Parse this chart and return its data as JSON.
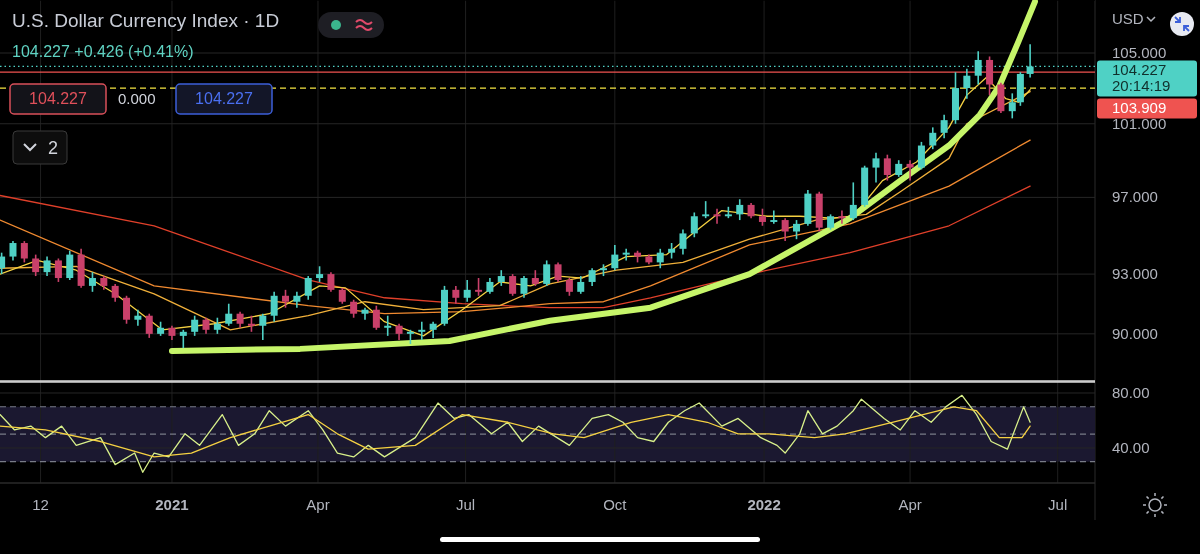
{
  "chart_data": [
    {
      "type": "candlestick",
      "title": "U.S. Dollar Currency Index · 1D",
      "annotations": [
        "104.227 +0.426 (+0.41%)",
        "104.227",
        "0.000",
        "104.227",
        "2",
        "USD",
        "20:14:19"
      ],
      "xlim": [
        "2020-09-17",
        "2022-07-24"
      ],
      "xticks": [
        {
          "value": "2020-10-12",
          "label": null
        },
        {
          "value": "2021-01-01",
          "label": null
        },
        {
          "value": "2021-04-01",
          "label": null
        },
        {
          "value": "2021-07-01",
          "label": null
        },
        {
          "value": "2021-10-01",
          "label": null
        },
        {
          "value": "2022-01-01",
          "label": null
        },
        {
          "value": "2022-04-01",
          "label": null
        },
        {
          "value": "2022-07-01",
          "label": null
        }
      ],
      "ylim": [
        87.7,
        108.1
      ],
      "yticks": [
        {
          "value": 90,
          "label": "90.000"
        },
        {
          "value": 93,
          "label": "93.000"
        },
        {
          "value": 97,
          "label": "97.000"
        },
        {
          "value": 101,
          "label": "101.000"
        },
        {
          "value": 105,
          "label": "105.000"
        }
      ],
      "log": "y",
      "grid": true,
      "tick_labels": "y",
      "ref_lines": [
        {
          "axis": "y",
          "value": 104.227,
          "label": "104.227",
          "color": "#4fd1c5",
          "line_style": "dotted"
        },
        {
          "axis": "y",
          "value": 103.909,
          "label": "103.909",
          "color": "#ef5350",
          "line_style": "solid"
        },
        {
          "axis": "y",
          "value": 103.0,
          "color": "#f5e642",
          "line_style": "dashed"
        }
      ],
      "series": [
        {
          "type": "candlestick",
          "x": [
            "2020-09-18",
            "2020-09-25",
            "2020-10-02",
            "2020-10-09",
            "2020-10-16",
            "2020-10-23",
            "2020-10-30",
            "2020-11-06",
            "2020-11-13",
            "2020-11-20",
            "2020-11-27",
            "2020-12-04",
            "2020-12-11",
            "2020-12-18",
            "2020-12-25",
            "2021-01-01",
            "2021-01-08",
            "2021-01-15",
            "2021-01-22",
            "2021-01-29",
            "2021-02-05",
            "2021-02-12",
            "2021-02-19",
            "2021-02-26",
            "2021-03-05",
            "2021-03-12",
            "2021-03-19",
            "2021-03-26",
            "2021-04-02",
            "2021-04-09",
            "2021-04-16",
            "2021-04-23",
            "2021-04-30",
            "2021-05-07",
            "2021-05-14",
            "2021-05-21",
            "2021-05-28",
            "2021-06-04",
            "2021-06-11",
            "2021-06-18",
            "2021-06-25",
            "2021-07-02",
            "2021-07-09",
            "2021-07-16",
            "2021-07-23",
            "2021-07-30",
            "2021-08-06",
            "2021-08-13",
            "2021-08-20",
            "2021-08-27",
            "2021-09-03",
            "2021-09-10",
            "2021-09-17",
            "2021-09-24",
            "2021-10-01",
            "2021-10-08",
            "2021-10-15",
            "2021-10-22",
            "2021-10-29",
            "2021-11-05",
            "2021-11-12",
            "2021-11-19",
            "2021-11-26",
            "2021-12-03",
            "2021-12-10",
            "2021-12-17",
            "2021-12-24",
            "2021-12-31",
            "2022-01-07",
            "2022-01-14",
            "2022-01-21",
            "2022-01-28",
            "2022-02-04",
            "2022-02-11",
            "2022-02-18",
            "2022-02-25",
            "2022-03-04",
            "2022-03-11",
            "2022-03-18",
            "2022-03-25",
            "2022-04-01",
            "2022-04-08",
            "2022-04-15",
            "2022-04-22",
            "2022-04-29",
            "2022-05-06",
            "2022-05-13",
            "2022-05-20",
            "2022-05-27",
            "2022-06-03",
            "2022-06-08",
            "2022-06-14"
          ],
          "ohlc": [
            [
              93.3,
              94.1,
              93.0,
              93.9
            ],
            [
              93.9,
              94.7,
              93.7,
              94.6
            ],
            [
              94.6,
              94.7,
              93.6,
              93.8
            ],
            [
              93.8,
              94.0,
              92.9,
              93.1
            ],
            [
              93.1,
              93.9,
              92.9,
              93.7
            ],
            [
              93.7,
              93.8,
              92.6,
              92.8
            ],
            [
              92.8,
              94.2,
              92.7,
              94.0
            ],
            [
              94.0,
              94.3,
              92.3,
              92.4
            ],
            [
              92.4,
              93.1,
              92.1,
              92.8
            ],
            [
              92.8,
              92.9,
              92.2,
              92.4
            ],
            [
              92.4,
              92.5,
              91.6,
              91.8
            ],
            [
              91.8,
              91.9,
              90.5,
              90.7
            ],
            [
              90.7,
              91.2,
              90.4,
              90.9
            ],
            [
              90.9,
              91.0,
              89.8,
              90.0
            ],
            [
              90.0,
              90.6,
              89.9,
              90.3
            ],
            [
              90.3,
              90.4,
              89.7,
              89.9
            ],
            [
              89.9,
              90.2,
              89.3,
              90.1
            ],
            [
              90.1,
              90.9,
              89.9,
              90.7
            ],
            [
              90.7,
              90.8,
              90.0,
              90.2
            ],
            [
              90.2,
              90.8,
              90.0,
              90.5
            ],
            [
              90.5,
              91.5,
              90.4,
              91.0
            ],
            [
              91.0,
              91.1,
              90.3,
              90.5
            ],
            [
              90.5,
              90.9,
              90.1,
              90.4
            ],
            [
              90.4,
              91.0,
              89.7,
              90.9
            ],
            [
              90.9,
              92.1,
              90.6,
              91.9
            ],
            [
              91.9,
              92.2,
              91.3,
              91.6
            ],
            [
              91.6,
              92.1,
              91.3,
              91.9
            ],
            [
              91.9,
              92.9,
              91.7,
              92.8
            ],
            [
              92.8,
              93.4,
              92.6,
              93.0
            ],
            [
              93.0,
              93.1,
              92.1,
              92.2
            ],
            [
              92.2,
              92.3,
              91.5,
              91.6
            ],
            [
              91.6,
              91.7,
              90.8,
              91.0
            ],
            [
              91.0,
              91.3,
              90.7,
              91.2
            ],
            [
              91.2,
              91.4,
              90.2,
              90.3
            ],
            [
              90.3,
              90.9,
              89.9,
              90.4
            ],
            [
              90.4,
              90.5,
              89.7,
              90.0
            ],
            [
              90.0,
              90.2,
              89.5,
              90.1
            ],
            [
              90.1,
              90.6,
              89.7,
              90.2
            ],
            [
              90.2,
              90.6,
              89.8,
              90.5
            ],
            [
              90.5,
              92.4,
              90.4,
              92.2
            ],
            [
              92.2,
              92.4,
              91.5,
              91.8
            ],
            [
              91.8,
              92.7,
              91.6,
              92.2
            ],
            [
              92.2,
              92.8,
              91.9,
              92.1
            ],
            [
              92.1,
              92.8,
              92.0,
              92.6
            ],
            [
              92.6,
              93.2,
              92.4,
              92.9
            ],
            [
              92.9,
              93.0,
              91.9,
              92.0
            ],
            [
              92.0,
              92.9,
              91.8,
              92.8
            ],
            [
              92.8,
              93.2,
              92.4,
              92.5
            ],
            [
              92.5,
              93.7,
              92.4,
              93.5
            ],
            [
              93.5,
              93.6,
              92.6,
              92.7
            ],
            [
              92.7,
              92.8,
              91.9,
              92.1
            ],
            [
              92.1,
              92.9,
              92.0,
              92.6
            ],
            [
              92.6,
              93.3,
              92.4,
              93.2
            ],
            [
              93.2,
              93.5,
              92.9,
              93.3
            ],
            [
              93.3,
              94.5,
              93.2,
              94.0
            ],
            [
              94.0,
              94.3,
              93.7,
              94.1
            ],
            [
              94.1,
              94.2,
              93.6,
              93.9
            ],
            [
              93.9,
              94.0,
              93.5,
              93.6
            ],
            [
              93.6,
              94.3,
              93.3,
              94.1
            ],
            [
              94.1,
              94.6,
              93.8,
              94.3
            ],
            [
              94.3,
              95.3,
              94.0,
              95.1
            ],
            [
              95.1,
              96.2,
              94.9,
              96.0
            ],
            [
              96.0,
              96.8,
              95.9,
              96.1
            ],
            [
              96.1,
              96.4,
              95.6,
              96.0
            ],
            [
              96.0,
              96.5,
              95.9,
              96.1
            ],
            [
              96.1,
              96.9,
              95.8,
              96.6
            ],
            [
              96.6,
              96.7,
              95.9,
              96.0
            ],
            [
              96.0,
              96.4,
              95.5,
              95.7
            ],
            [
              95.7,
              96.3,
              95.6,
              95.8
            ],
            [
              95.8,
              95.9,
              94.7,
              95.2
            ],
            [
              95.2,
              95.8,
              94.8,
              95.6
            ],
            [
              95.6,
              97.4,
              95.5,
              97.2
            ],
            [
              97.2,
              97.3,
              95.2,
              95.4
            ],
            [
              95.4,
              96.1,
              95.3,
              96.0
            ],
            [
              96.0,
              96.3,
              95.6,
              95.9
            ],
            [
              95.9,
              97.8,
              95.8,
              96.6
            ],
            [
              96.6,
              98.7,
              96.5,
              98.6
            ],
            [
              98.6,
              99.4,
              97.8,
              99.1
            ],
            [
              99.1,
              99.3,
              97.9,
              98.2
            ],
            [
              98.2,
              99.0,
              98.1,
              98.8
            ],
            [
              98.8,
              99.0,
              97.9,
              98.6
            ],
            [
              98.6,
              100.0,
              98.5,
              99.8
            ],
            [
              99.8,
              100.8,
              99.6,
              100.5
            ],
            [
              100.5,
              101.5,
              100.2,
              101.2
            ],
            [
              101.2,
              103.9,
              101.0,
              103.0
            ],
            [
              103.0,
              104.1,
              102.4,
              103.7
            ],
            [
              103.7,
              105.1,
              103.2,
              104.6
            ],
            [
              104.6,
              104.8,
              102.6,
              103.2
            ],
            [
              103.2,
              103.3,
              101.6,
              101.7
            ],
            [
              101.7,
              102.7,
              101.3,
              102.2
            ],
            [
              102.2,
              103.9,
              102.0,
              103.8
            ],
            [
              103.8,
              105.5,
              103.6,
              104.227
            ]
          ],
          "colors": [
            "#4fd1c5",
            "#4fd1c5",
            "#c9406a",
            "#c9406a",
            "#4fd1c5",
            "#c9406a",
            "#4fd1c5",
            "#c9406a",
            "#4fd1c5",
            "#c9406a",
            "#c9406a",
            "#c9406a",
            "#4fd1c5",
            "#c9406a",
            "#4fd1c5",
            "#c9406a",
            "#4fd1c5",
            "#4fd1c5",
            "#c9406a",
            "#4fd1c5",
            "#4fd1c5",
            "#c9406a",
            "#c9406a",
            "#4fd1c5",
            "#4fd1c5",
            "#c9406a",
            "#4fd1c5",
            "#4fd1c5",
            "#4fd1c5",
            "#c9406a",
            "#c9406a",
            "#c9406a",
            "#4fd1c5",
            "#c9406a",
            "#4fd1c5",
            "#c9406a",
            "#4fd1c5",
            "#4fd1c5",
            "#4fd1c5",
            "#4fd1c5",
            "#c9406a",
            "#4fd1c5",
            "#c9406a",
            "#4fd1c5",
            "#4fd1c5",
            "#c9406a",
            "#4fd1c5",
            "#c9406a",
            "#4fd1c5",
            "#c9406a",
            "#c9406a",
            "#4fd1c5",
            "#4fd1c5",
            "#4fd1c5",
            "#4fd1c5",
            "#4fd1c5",
            "#c9406a",
            "#c9406a",
            "#4fd1c5",
            "#4fd1c5",
            "#4fd1c5",
            "#4fd1c5",
            "#4fd1c5",
            "#c9406a",
            "#4fd1c5",
            "#4fd1c5",
            "#c9406a",
            "#c9406a",
            "#4fd1c5",
            "#c9406a",
            "#4fd1c5",
            "#4fd1c5",
            "#c9406a",
            "#4fd1c5",
            "#c9406a",
            "#4fd1c5",
            "#4fd1c5",
            "#4fd1c5",
            "#c9406a",
            "#4fd1c5",
            "#c9406a",
            "#4fd1c5",
            "#4fd1c5",
            "#4fd1c5",
            "#4fd1c5",
            "#4fd1c5",
            "#4fd1c5",
            "#c9406a",
            "#c9406a",
            "#4fd1c5",
            "#4fd1c5",
            "#4fd1c5"
          ]
        },
        {
          "type": "line",
          "color": "#e0402a",
          "x": [
            "2020-09-17",
            "2020-12-21",
            "2021-03-26",
            "2021-05-12",
            "2021-06-29",
            "2021-08-22",
            "2021-09-24",
            "2021-10-23",
            "2021-12-23",
            "2022-02-23",
            "2022-03-26",
            "2022-04-25",
            "2022-06-14"
          ],
          "values": [
            97.1,
            95.5,
            92.7,
            91.8,
            91.5,
            91.3,
            91.3,
            91.8,
            93.0,
            94.1,
            94.8,
            95.5,
            97.6
          ]
        },
        {
          "type": "line",
          "color": "#f08a30",
          "x": [
            "2020-09-17",
            "2020-12-21",
            "2021-03-26",
            "2021-05-12",
            "2021-06-29",
            "2021-08-22",
            "2021-09-24",
            "2021-10-23",
            "2021-12-23",
            "2022-02-23",
            "2022-04-25",
            "2022-06-14"
          ],
          "values": [
            95.8,
            92.4,
            91.4,
            91.0,
            91.1,
            91.5,
            91.6,
            92.4,
            94.5,
            95.6,
            97.6,
            100.1
          ]
        },
        {
          "type": "line",
          "color": "#f0b03a",
          "x": [
            "2020-09-17",
            "2020-11-03",
            "2020-12-21",
            "2021-02-06",
            "2021-03-26",
            "2021-04-30",
            "2021-06-05",
            "2021-07-22",
            "2021-08-22",
            "2021-10-02",
            "2021-11-12",
            "2021-12-23",
            "2022-02-02",
            "2022-03-05",
            "2022-03-26",
            "2022-04-25",
            "2022-05-06",
            "2022-06-14"
          ],
          "values": [
            93.3,
            93.4,
            92.0,
            90.2,
            90.9,
            91.6,
            91.2,
            91.4,
            92.5,
            93.2,
            93.6,
            94.8,
            95.8,
            96.1,
            97.3,
            99.1,
            101.0,
            102.8
          ]
        },
        {
          "type": "line",
          "color": "#f5d142",
          "x": [
            "2020-09-17",
            "2020-10-10",
            "2020-11-03",
            "2020-11-27",
            "2020-12-26",
            "2021-01-27",
            "2021-03-02",
            "2021-04-02",
            "2021-04-18",
            "2021-05-12",
            "2021-06-05",
            "2021-06-29",
            "2021-07-22",
            "2021-08-10",
            "2021-08-27",
            "2021-09-11",
            "2021-10-08",
            "2021-11-02",
            "2021-11-18",
            "2021-12-06",
            "2022-01-03",
            "2022-01-23",
            "2022-02-12",
            "2022-02-25",
            "2022-03-15",
            "2022-04-05",
            "2022-04-25",
            "2022-05-06",
            "2022-05-18",
            "2022-05-30",
            "2022-06-07",
            "2022-06-14"
          ],
          "values": [
            93.0,
            93.7,
            93.2,
            92.0,
            90.2,
            90.5,
            91.0,
            92.4,
            92.3,
            90.6,
            89.9,
            91.2,
            92.6,
            92.4,
            92.9,
            92.8,
            93.9,
            94.0,
            95.1,
            96.3,
            96.0,
            96.0,
            95.9,
            96.0,
            97.9,
            98.9,
            100.8,
            102.6,
            103.6,
            102.4,
            102.2,
            102.9
          ]
        },
        {
          "type": "line",
          "color": "#c6f56a",
          "x": [
            "2021-01-01",
            "2021-03-21",
            "2021-06-21",
            "2021-08-22",
            "2021-10-23",
            "2021-12-23",
            "2022-02-23",
            "2022-03-26",
            "2022-04-25",
            "2022-05-14",
            "2022-05-26",
            "2022-06-07",
            "2022-06-17"
          ],
          "values": [
            89.16,
            89.26,
            89.65,
            90.65,
            91.3,
            93.0,
            95.9,
            97.9,
            99.8,
            101.5,
            103.1,
            105.7,
            108.0
          ]
        }
      ]
    },
    {
      "type": "line",
      "xlim": [
        "2020-09-17",
        "2022-07-24"
      ],
      "xticks": [
        {
          "value": "2020-10-12",
          "label": "12"
        },
        {
          "value": "2021-01-01",
          "label": "2021"
        },
        {
          "value": "2021-04-01",
          "label": "Apr"
        },
        {
          "value": "2021-07-01",
          "label": "Jul"
        },
        {
          "value": "2021-10-01",
          "label": "Oct"
        },
        {
          "value": "2022-01-01",
          "label": "2022"
        },
        {
          "value": "2022-04-01",
          "label": "Apr"
        },
        {
          "value": "2022-07-01",
          "label": "Jul"
        }
      ],
      "ylim": [
        14.5,
        88.0
      ],
      "yticks": [
        {
          "value": 40,
          "label": "40.00"
        },
        {
          "value": 80,
          "label": "80.00"
        }
      ],
      "grid": true,
      "ref_lines": [
        {
          "axis": "y",
          "value": 70,
          "color": "#787b86",
          "line_style": "dashed"
        },
        {
          "axis": "y",
          "value": 50,
          "color": "#787b86",
          "line_style": "dashed"
        },
        {
          "axis": "y",
          "value": 30,
          "color": "#787b86",
          "line_style": "dashed"
        }
      ],
      "bands": [
        {
          "axis": "y",
          "from": 30,
          "to": 70,
          "color": "#1b1830"
        }
      ],
      "series": [
        {
          "type": "line",
          "color": "#d8f08a",
          "x": [
            "2020-09-17",
            "2020-09-26",
            "2020-10-06",
            "2020-10-15",
            "2020-10-25",
            "2020-11-03",
            "2020-11-18",
            "2020-11-27",
            "2020-12-09",
            "2020-12-14",
            "2020-12-21",
            "2020-12-30",
            "2021-01-09",
            "2021-01-18",
            "2021-02-01",
            "2021-02-11",
            "2021-02-21",
            "2021-03-02",
            "2021-03-12",
            "2021-03-26",
            "2021-04-04",
            "2021-04-13",
            "2021-04-23",
            "2021-05-02",
            "2021-05-12",
            "2021-05-31",
            "2021-06-14",
            "2021-06-24",
            "2021-07-03",
            "2021-07-17",
            "2021-07-27",
            "2021-08-05",
            "2021-08-15",
            "2021-09-03",
            "2021-09-17",
            "2021-09-27",
            "2021-10-06",
            "2021-10-15",
            "2021-10-25",
            "2021-11-03",
            "2021-11-13",
            "2021-11-22",
            "2021-12-06",
            "2021-12-16",
            "2021-12-30",
            "2022-01-09",
            "2022-01-14",
            "2022-01-23",
            "2022-01-28",
            "2022-02-06",
            "2022-02-15",
            "2022-02-25",
            "2022-03-02",
            "2022-03-16",
            "2022-03-26",
            "2022-04-04",
            "2022-04-14",
            "2022-04-23",
            "2022-05-03",
            "2022-05-12",
            "2022-05-21",
            "2022-05-31",
            "2022-06-10",
            "2022-06-14"
          ],
          "values": [
            64.3,
            53.1,
            55.9,
            47.5,
            55.9,
            41.9,
            47.5,
            27.9,
            36.3,
            22.3,
            36.3,
            33.5,
            50.3,
            41.9,
            64.3,
            41.9,
            50.3,
            67.1,
            55.9,
            67.1,
            53.1,
            36.3,
            33.5,
            41.9,
            33.5,
            47.5,
            72.7,
            61.5,
            64.3,
            50.3,
            58.7,
            44.7,
            55.9,
            41.9,
            61.5,
            64.3,
            58.7,
            47.5,
            44.7,
            58.7,
            67.1,
            72.7,
            55.9,
            61.5,
            47.5,
            41.9,
            36.3,
            50.3,
            67.1,
            50.3,
            55.9,
            67.1,
            75.5,
            61.5,
            53.1,
            67.1,
            58.7,
            69.9,
            78.3,
            64.3,
            44.7,
            39.1,
            69.9,
            58.7
          ]
        },
        {
          "type": "line",
          "color": "#f5d142",
          "x": [
            "2020-09-17",
            "2020-10-15",
            "2020-11-18",
            "2020-12-21",
            "2021-01-13",
            "2021-02-06",
            "2021-03-02",
            "2021-03-26",
            "2021-04-13",
            "2021-05-02",
            "2021-05-31",
            "2021-06-29",
            "2021-07-27",
            "2021-08-24",
            "2021-09-12",
            "2021-10-11",
            "2021-11-03",
            "2021-11-27",
            "2021-12-16",
            "2022-01-04",
            "2022-02-01",
            "2022-02-20",
            "2022-03-21",
            "2022-04-09",
            "2022-04-28",
            "2022-05-12",
            "2022-05-26",
            "2022-06-09",
            "2022-06-14"
          ],
          "values": [
            55.9,
            53.1,
            44.7,
            33.5,
            36.3,
            47.5,
            55.9,
            64.3,
            50.3,
            39.1,
            41.9,
            64.3,
            58.7,
            50.3,
            47.5,
            58.7,
            64.3,
            58.7,
            50.3,
            50.3,
            47.5,
            50.3,
            58.7,
            64.3,
            69.9,
            67.1,
            47.5,
            47.5,
            55.9
          ]
        }
      ]
    }
  ]
}
